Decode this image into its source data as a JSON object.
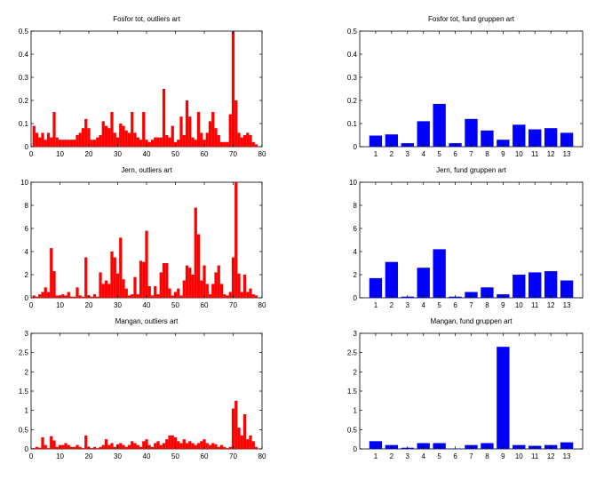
{
  "chart_data": [
    {
      "type": "bar",
      "title": "Fosfor tot, outliers art",
      "color": "#ff0000",
      "xlim": [
        0,
        80
      ],
      "ylim": [
        0,
        0.5
      ],
      "xticks": [
        0,
        10,
        20,
        30,
        40,
        50,
        60,
        70,
        80
      ],
      "yticks": [
        0,
        0.1,
        0.2,
        0.3,
        0.4,
        0.5
      ],
      "ytick_labels": [
        "0",
        "0.1",
        "0.2",
        "0.3",
        "0.4",
        "0.5"
      ],
      "x": [
        1,
        2,
        3,
        4,
        5,
        6,
        7,
        8,
        9,
        10,
        11,
        12,
        13,
        14,
        15,
        16,
        17,
        18,
        19,
        20,
        21,
        22,
        23,
        24,
        25,
        26,
        27,
        28,
        29,
        30,
        31,
        32,
        33,
        34,
        35,
        36,
        37,
        38,
        39,
        40,
        41,
        42,
        43,
        44,
        45,
        46,
        47,
        48,
        49,
        50,
        51,
        52,
        53,
        54,
        55,
        56,
        57,
        58,
        59,
        60,
        61,
        62,
        63,
        64,
        65,
        66,
        67,
        68,
        69,
        70,
        71,
        72,
        73,
        74,
        75,
        76,
        77,
        78
      ],
      "values": [
        0.09,
        0.06,
        0.04,
        0.06,
        0.03,
        0.06,
        0.04,
        0.15,
        0.04,
        0.03,
        0.03,
        0.03,
        0.03,
        0.03,
        0.03,
        0.05,
        0.06,
        0.08,
        0.12,
        0.08,
        0.03,
        0.03,
        0.04,
        0.05,
        0.11,
        0.09,
        0.08,
        0.15,
        0.06,
        0.04,
        0.1,
        0.09,
        0.07,
        0.06,
        0.15,
        0.06,
        0.04,
        0.03,
        0.15,
        0.03,
        0.02,
        0.03,
        0.04,
        0.04,
        0.04,
        0.25,
        0.05,
        0.04,
        0.09,
        0.02,
        0.03,
        0.13,
        0.05,
        0.2,
        0.13,
        0.04,
        0.03,
        0.15,
        0.06,
        0.03,
        0.06,
        0.11,
        0.15,
        0.08,
        0.05,
        0.02,
        0.02,
        0.02,
        0.14,
        0.5,
        0.2,
        0.06,
        0.04,
        0.05,
        0.06,
        0.05,
        0.02,
        0.01
      ]
    },
    {
      "type": "bar",
      "title": "Fosfor tot, fund gruppen art",
      "color": "#0000ff",
      "xlim": [
        0,
        14
      ],
      "ylim": [
        0,
        0.5
      ],
      "categories": [
        "1",
        "2",
        "3",
        "4",
        "5",
        "6",
        "7",
        "8",
        "9",
        "10",
        "11",
        "12",
        "13"
      ],
      "yticks": [
        0,
        0.1,
        0.2,
        0.3,
        0.4,
        0.5
      ],
      "ytick_labels": [
        "0",
        "0.1",
        "0.2",
        "0.3",
        "0.4",
        "0.5"
      ],
      "values": [
        0.048,
        0.053,
        0.015,
        0.11,
        0.185,
        0.015,
        0.12,
        0.07,
        0.03,
        0.095,
        0.075,
        0.08,
        0.06
      ]
    },
    {
      "type": "bar",
      "title": "Jern, outliers art",
      "color": "#ff0000",
      "xlim": [
        0,
        80
      ],
      "ylim": [
        0,
        10
      ],
      "xticks": [
        0,
        10,
        20,
        30,
        40,
        50,
        60,
        70,
        80
      ],
      "yticks": [
        0,
        2,
        4,
        6,
        8,
        10
      ],
      "ytick_labels": [
        "0",
        "2",
        "4",
        "6",
        "8",
        "10"
      ],
      "x": [
        1,
        2,
        3,
        4,
        5,
        6,
        7,
        8,
        9,
        10,
        11,
        12,
        13,
        14,
        15,
        16,
        17,
        18,
        19,
        20,
        21,
        22,
        23,
        24,
        25,
        26,
        27,
        28,
        29,
        30,
        31,
        32,
        33,
        34,
        35,
        36,
        37,
        38,
        39,
        40,
        41,
        42,
        43,
        44,
        45,
        46,
        47,
        48,
        49,
        50,
        51,
        52,
        53,
        54,
        55,
        56,
        57,
        58,
        59,
        60,
        61,
        62,
        63,
        64,
        65,
        66,
        67,
        68,
        69,
        70,
        71,
        72,
        73,
        74,
        75,
        76,
        77,
        78
      ],
      "values": [
        0.2,
        0.1,
        0.3,
        0.5,
        0.9,
        0.5,
        4.3,
        2.3,
        0.2,
        0.2,
        0.3,
        0.2,
        0.5,
        0.1,
        0.1,
        0.9,
        0.2,
        0.1,
        3.5,
        0.2,
        0.1,
        0.3,
        0.1,
        2.2,
        1.2,
        1.5,
        1.2,
        4,
        3.5,
        2.1,
        5.2,
        1.6,
        0.8,
        0.2,
        0.3,
        1.8,
        0.3,
        3.2,
        3.1,
        5.8,
        1,
        0.2,
        1,
        0.3,
        2.2,
        3,
        3,
        0.8,
        0.2,
        0.5,
        0.8,
        0.2,
        1.5,
        2.8,
        2.6,
        2,
        7.8,
        5.5,
        1.5,
        2.8,
        1.2,
        0.3,
        1.2,
        2.2,
        2.8,
        1.2,
        0.3,
        0.2,
        0.5,
        3.5,
        10,
        2.1,
        0.5,
        2,
        0.5,
        0.8,
        0.3,
        0.2
      ]
    },
    {
      "type": "bar",
      "title": "Jern, fund gruppen art",
      "color": "#0000ff",
      "xlim": [
        0,
        14
      ],
      "ylim": [
        0,
        10
      ],
      "categories": [
        "1",
        "2",
        "3",
        "4",
        "5",
        "6",
        "7",
        "8",
        "9",
        "10",
        "11",
        "12",
        "13"
      ],
      "yticks": [
        0,
        2,
        4,
        6,
        8,
        10
      ],
      "ytick_labels": [
        "0",
        "2",
        "4",
        "6",
        "8",
        "10"
      ],
      "values": [
        1.7,
        3.1,
        0.1,
        2.6,
        4.2,
        0.1,
        0.5,
        0.9,
        0.3,
        2,
        2.2,
        2.3,
        1.5
      ]
    },
    {
      "type": "bar",
      "title": "Mangan, outliers art",
      "color": "#ff0000",
      "xlim": [
        0,
        80
      ],
      "ylim": [
        0,
        3
      ],
      "xticks": [
        0,
        10,
        20,
        30,
        40,
        50,
        60,
        70,
        80
      ],
      "yticks": [
        0,
        0.5,
        1,
        1.5,
        2,
        2.5,
        3
      ],
      "ytick_labels": [
        "0",
        "0.5",
        "1",
        "1.5",
        "2",
        "2.5",
        "3"
      ],
      "x": [
        1,
        2,
        3,
        4,
        5,
        6,
        7,
        8,
        9,
        10,
        11,
        12,
        13,
        14,
        15,
        16,
        17,
        18,
        19,
        20,
        21,
        22,
        23,
        24,
        25,
        26,
        27,
        28,
        29,
        30,
        31,
        32,
        33,
        34,
        35,
        36,
        37,
        38,
        39,
        40,
        41,
        42,
        43,
        44,
        45,
        46,
        47,
        48,
        49,
        50,
        51,
        52,
        53,
        54,
        55,
        56,
        57,
        58,
        59,
        60,
        61,
        62,
        63,
        64,
        65,
        66,
        67,
        68,
        69,
        70,
        71,
        72,
        73,
        74,
        75,
        76,
        77,
        78
      ],
      "values": [
        0.02,
        0.05,
        0.03,
        0.3,
        0.1,
        0.02,
        0.33,
        0.22,
        0.05,
        0.1,
        0.1,
        0.15,
        0.1,
        0.05,
        0.05,
        0.1,
        0.05,
        0.02,
        0.35,
        0.05,
        0.02,
        0.05,
        0.02,
        0.05,
        0.1,
        0.25,
        0.1,
        0.15,
        0.05,
        0.12,
        0.15,
        0.1,
        0.05,
        0.1,
        0.2,
        0.15,
        0.1,
        0.05,
        0.2,
        0.25,
        0.1,
        0.05,
        0.15,
        0.2,
        0.1,
        0.15,
        0.25,
        0.35,
        0.35,
        0.3,
        0.2,
        0.15,
        0.25,
        0.15,
        0.2,
        0.15,
        0.1,
        0.15,
        0.2,
        0.25,
        0.15,
        0.1,
        0.15,
        0.12,
        0.05,
        0.1,
        0.05,
        0.02,
        0.05,
        1.05,
        1.25,
        0.55,
        0.35,
        0.9,
        0.25,
        0.35,
        0.2,
        0.05
      ]
    },
    {
      "type": "bar",
      "title": "Mangan, fund gruppen art",
      "color": "#0000ff",
      "xlim": [
        0,
        14
      ],
      "ylim": [
        0,
        3
      ],
      "categories": [
        "1",
        "2",
        "3",
        "4",
        "5",
        "6",
        "7",
        "8",
        "9",
        "10",
        "11",
        "12",
        "13"
      ],
      "yticks": [
        0,
        0.5,
        1,
        1.5,
        2,
        2.5,
        3
      ],
      "ytick_labels": [
        "0",
        "0.5",
        "1",
        "1.5",
        "2",
        "2.5",
        "3"
      ],
      "values": [
        0.2,
        0.1,
        0.03,
        0.15,
        0.15,
        0.01,
        0.1,
        0.15,
        2.65,
        0.1,
        0.08,
        0.1,
        0.17
      ]
    }
  ]
}
